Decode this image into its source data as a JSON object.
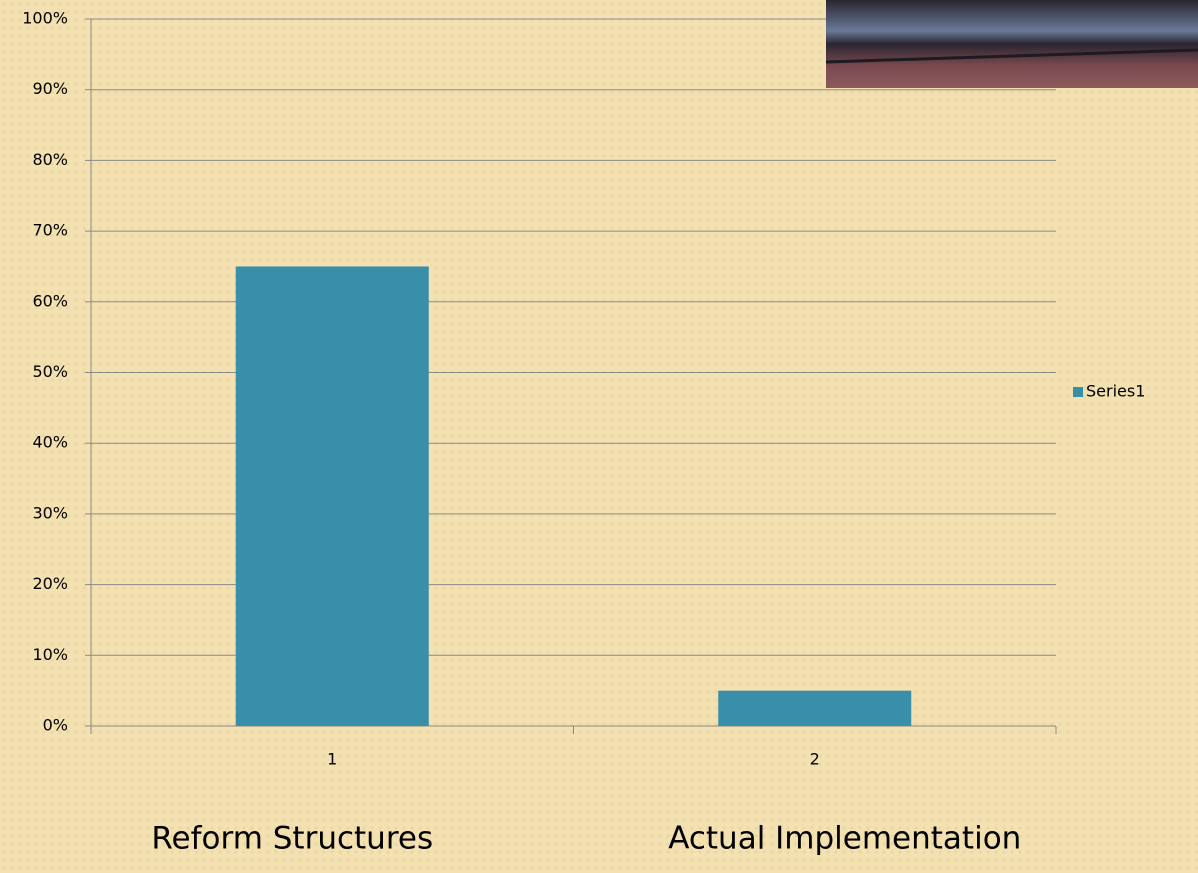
{
  "chart_data": {
    "type": "bar",
    "categories": [
      "1",
      "2"
    ],
    "series": [
      {
        "name": "Series1",
        "color": "#3a8fa8",
        "values": [
          65,
          5
        ]
      }
    ],
    "ylim": [
      0,
      100
    ],
    "yticks": [
      {
        "value": 0,
        "label": "0%"
      },
      {
        "value": 10,
        "label": "10%"
      },
      {
        "value": 20,
        "label": "20%"
      },
      {
        "value": 30,
        "label": "30%"
      },
      {
        "value": 40,
        "label": "40%"
      },
      {
        "value": 50,
        "label": "50%"
      },
      {
        "value": 60,
        "label": "60%"
      },
      {
        "value": 70,
        "label": "70%"
      },
      {
        "value": 80,
        "label": "80%"
      },
      {
        "value": 90,
        "label": "90%"
      },
      {
        "value": 100,
        "label": "100%"
      }
    ],
    "grid": true,
    "legend": "right",
    "annotations": [
      "Reform Structures",
      "Actual Implementation"
    ]
  }
}
